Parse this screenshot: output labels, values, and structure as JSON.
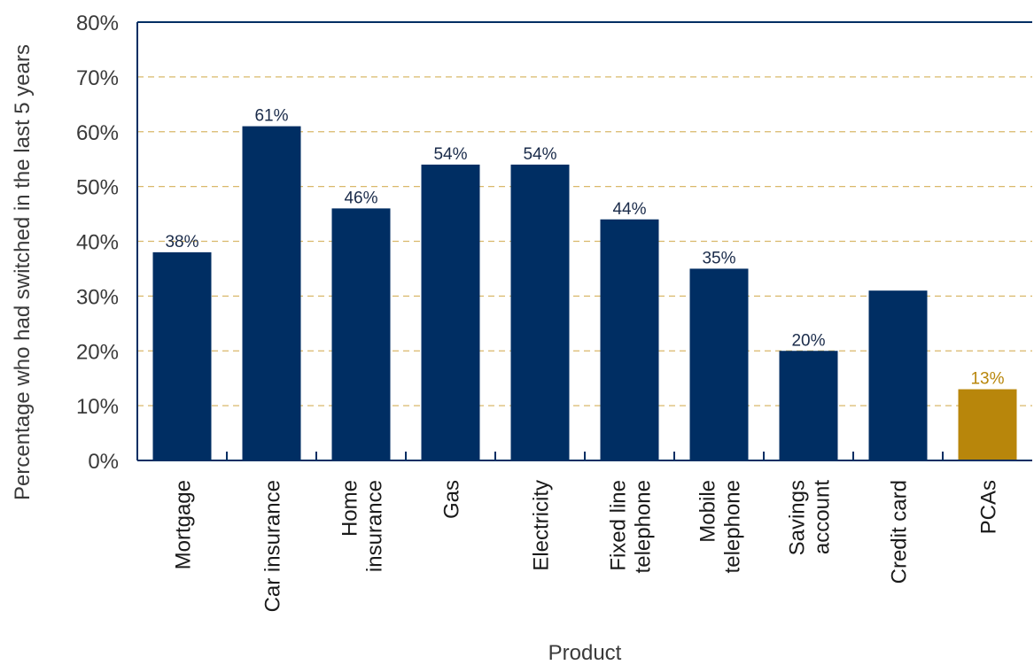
{
  "chart_data": {
    "type": "bar",
    "categories": [
      [
        "Mortgage"
      ],
      [
        "Car insurance"
      ],
      [
        "Home",
        "insurance"
      ],
      [
        "Gas"
      ],
      [
        "Electricity"
      ],
      [
        "Fixed line",
        "telephone"
      ],
      [
        "Mobile",
        "telephone"
      ],
      [
        "Savings",
        "account"
      ],
      [
        "Credit card"
      ],
      [
        "PCAs"
      ]
    ],
    "values": [
      38,
      61,
      46,
      54,
      54,
      44,
      35,
      20,
      31,
      13
    ],
    "data_labels": [
      "38%",
      "61%",
      "46%",
      "54%",
      "54%",
      "44%",
      "35%",
      "20%",
      "",
      "13%"
    ],
    "bar_colors": [
      "#002e63",
      "#002e63",
      "#002e63",
      "#002e63",
      "#002e63",
      "#002e63",
      "#002e63",
      "#002e63",
      "#002e63",
      "#b8860b"
    ],
    "label_colors": [
      "#1a2b4a",
      "#1a2b4a",
      "#1a2b4a",
      "#1a2b4a",
      "#1a2b4a",
      "#1a2b4a",
      "#1a2b4a",
      "#1a2b4a",
      "#1a2b4a",
      "#b8860b"
    ],
    "xlabel": "Product",
    "ylabel": "Percentage who had switched in the last 5 years",
    "ylim": [
      0,
      80
    ],
    "yticks": [
      0,
      10,
      20,
      30,
      40,
      50,
      60,
      70,
      80
    ],
    "ytick_labels": [
      "0%",
      "10%",
      "20%",
      "30%",
      "40%",
      "50%",
      "60%",
      "70%",
      "80%"
    ],
    "grid": "horizontal dashed",
    "colors": {
      "axis": "#002e63",
      "grid": "#d9b86a"
    }
  }
}
